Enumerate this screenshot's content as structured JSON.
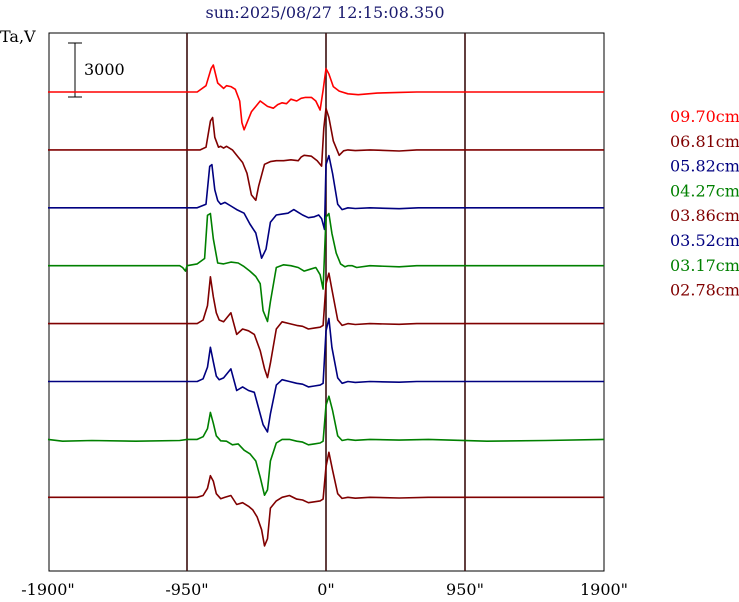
{
  "chart_data": {
    "type": "line",
    "title": "sun:2025/08/27 12:15:08.350",
    "ylabel": "Ta,V",
    "scale_bar_label": "3000",
    "scale_bar_value": 3000,
    "x_range": [
      -1900,
      1900
    ],
    "x_ticks": [
      {
        "value": -1900,
        "label": "-1900\""
      },
      {
        "value": -950,
        "label": "-950\""
      },
      {
        "value": 0,
        "label": "0\""
      },
      {
        "value": 950,
        "label": "950\""
      },
      {
        "value": 1900,
        "label": "1900\""
      }
    ],
    "vertical_lines": [
      -950,
      0,
      950
    ],
    "grid": false,
    "legend_position": "right",
    "colors": {
      "axis": "#000000",
      "vline": "#3a0f0f",
      "title": "#1a1a6e"
    },
    "series": [
      {
        "name": "09.70cm",
        "color": "#ff0000",
        "offset": 0,
        "x": [
          -1900,
          -950,
          -880,
          -820,
          -785,
          -770,
          -740,
          -700,
          -680,
          -650,
          -620,
          -590,
          -575,
          -560,
          -510,
          -450,
          -400,
          -360,
          -330,
          -300,
          -270,
          -240,
          -200,
          -170,
          -140,
          -100,
          -70,
          -40,
          -20,
          0,
          20,
          50,
          90,
          150,
          220,
          350,
          500,
          620,
          700,
          1900
        ],
        "y": [
          0,
          0,
          0,
          350,
          1300,
          1500,
          500,
          200,
          350,
          300,
          150,
          -500,
          -1700,
          -2100,
          -1100,
          -500,
          -800,
          -900,
          -700,
          -600,
          -650,
          -400,
          -500,
          -350,
          -300,
          -300,
          -500,
          -1000,
          100,
          1300,
          1000,
          300,
          50,
          -100,
          -150,
          -60,
          -20,
          0,
          0,
          0
        ]
      },
      {
        "name": "06.81cm",
        "color": "#800000",
        "offset": 1,
        "x": [
          -1900,
          -950,
          -860,
          -820,
          -790,
          -775,
          -760,
          -735,
          -720,
          -700,
          -680,
          -640,
          -600,
          -570,
          -540,
          -510,
          -480,
          -460,
          -420,
          -380,
          -340,
          -290,
          -240,
          -190,
          -170,
          -150,
          -100,
          -60,
          -30,
          -15,
          0,
          20,
          50,
          90,
          120,
          150,
          200,
          300,
          500,
          620,
          700,
          1900
        ],
        "y": [
          0,
          0,
          0,
          150,
          1600,
          1800,
          700,
          150,
          200,
          100,
          200,
          0,
          -400,
          -700,
          -1300,
          -2500,
          -2800,
          -2000,
          -800,
          -650,
          -600,
          -600,
          -550,
          -600,
          -400,
          -300,
          -350,
          -600,
          -900,
          1200,
          2300,
          1800,
          500,
          -300,
          -50,
          0,
          -40,
          0,
          -60,
          0,
          0,
          0
        ]
      },
      {
        "name": "05.82cm",
        "color": "#000080",
        "offset": 2,
        "x": [
          -1900,
          -950,
          -880,
          -820,
          -795,
          -780,
          -760,
          -740,
          -720,
          -690,
          -650,
          -610,
          -560,
          -520,
          -480,
          -440,
          -410,
          -380,
          -340,
          -300,
          -260,
          -220,
          -190,
          -160,
          -120,
          -80,
          -50,
          -30,
          -10,
          0,
          20,
          45,
          80,
          110,
          150,
          200,
          300,
          500,
          630,
          700,
          1900
        ],
        "y": [
          0,
          0,
          0,
          200,
          2300,
          2400,
          1000,
          400,
          200,
          300,
          100,
          -100,
          -300,
          -900,
          -1400,
          -2800,
          -2300,
          -800,
          -400,
          -350,
          -300,
          -100,
          -250,
          -400,
          -550,
          -500,
          -400,
          -600,
          -1200,
          2400,
          2900,
          1900,
          200,
          -100,
          0,
          -40,
          0,
          -50,
          0,
          0,
          0
        ]
      },
      {
        "name": "04.27cm",
        "color": "#008000",
        "offset": 3,
        "x": [
          -1900,
          -1000,
          -980,
          -960,
          -950,
          -880,
          -830,
          -810,
          -790,
          -770,
          -740,
          -700,
          -650,
          -600,
          -560,
          -520,
          -480,
          -450,
          -430,
          -400,
          -380,
          -340,
          -290,
          -240,
          -190,
          -150,
          -110,
          -70,
          -40,
          -20,
          0,
          20,
          40,
          70,
          100,
          130,
          150,
          180,
          210,
          300,
          500,
          620,
          700,
          1900
        ],
        "y": [
          0,
          0,
          -100,
          -300,
          0,
          100,
          400,
          2800,
          2900,
          1500,
          150,
          100,
          200,
          150,
          -50,
          -300,
          -600,
          -1000,
          -2500,
          -3100,
          -2000,
          -100,
          50,
          0,
          -100,
          -300,
          -200,
          -100,
          -500,
          -1300,
          2700,
          2900,
          1800,
          700,
          100,
          -60,
          0,
          0,
          -100,
          0,
          -60,
          0,
          0,
          0
        ]
      },
      {
        "name": "03.86cm",
        "color": "#800000",
        "offset": 4,
        "x": [
          -1900,
          -950,
          -880,
          -840,
          -810,
          -790,
          -770,
          -750,
          -730,
          -700,
          -650,
          -610,
          -570,
          -530,
          -490,
          -450,
          -420,
          -400,
          -380,
          -340,
          -300,
          -250,
          -200,
          -160,
          -120,
          -80,
          -40,
          -20,
          0,
          20,
          40,
          80,
          110,
          150,
          200,
          300,
          500,
          620,
          700,
          1900
        ],
        "y": [
          0,
          0,
          0,
          200,
          1000,
          2600,
          1500,
          600,
          200,
          100,
          600,
          -600,
          -300,
          -400,
          -600,
          -1500,
          -2500,
          -3000,
          -2200,
          -300,
          100,
          0,
          -100,
          -150,
          -300,
          -250,
          -200,
          -100,
          2200,
          2800,
          1900,
          200,
          -100,
          0,
          -50,
          0,
          -40,
          0,
          0,
          0
        ]
      },
      {
        "name": "03.52cm",
        "color": "#000080",
        "offset": 5,
        "x": [
          -1900,
          -950,
          -880,
          -840,
          -810,
          -790,
          -770,
          -750,
          -730,
          -700,
          -650,
          -610,
          -570,
          -530,
          -490,
          -460,
          -430,
          -400,
          -380,
          -340,
          -300,
          -250,
          -200,
          -160,
          -120,
          -80,
          -40,
          -20,
          0,
          20,
          40,
          80,
          110,
          150,
          200,
          300,
          500,
          620,
          700,
          1900
        ],
        "y": [
          0,
          0,
          0,
          150,
          800,
          1900,
          1100,
          300,
          100,
          200,
          700,
          -500,
          -300,
          -500,
          -600,
          -1500,
          -2400,
          -2800,
          -1800,
          -200,
          100,
          0,
          -100,
          -150,
          -300,
          -250,
          -200,
          -100,
          2800,
          3500,
          1900,
          200,
          -100,
          0,
          -50,
          0,
          -40,
          0,
          0,
          0
        ]
      },
      {
        "name": "03.17cm",
        "color": "#008000",
        "offset": 6,
        "x": [
          -1900,
          -1800,
          -1600,
          -1300,
          -1000,
          -950,
          -880,
          -840,
          -810,
          -790,
          -770,
          -750,
          -720,
          -680,
          -640,
          -600,
          -560,
          -520,
          -480,
          -450,
          -420,
          -400,
          -380,
          -340,
          -300,
          -250,
          -200,
          -160,
          -120,
          -80,
          -40,
          -20,
          0,
          20,
          45,
          80,
          110,
          150,
          200,
          300,
          500,
          700,
          1100,
          1500,
          1900
        ],
        "y": [
          0,
          -100,
          -60,
          -100,
          -60,
          0,
          0,
          150,
          600,
          1500,
          900,
          200,
          -80,
          -100,
          -300,
          -250,
          -600,
          -800,
          -1200,
          -2100,
          -3100,
          -2800,
          -1200,
          -200,
          0,
          0,
          -100,
          -150,
          -300,
          -250,
          -200,
          -100,
          1900,
          2400,
          1600,
          200,
          -60,
          0,
          -50,
          0,
          -40,
          0,
          -100,
          -60,
          0
        ]
      },
      {
        "name": "02.78cm",
        "color": "#800000",
        "offset": 7,
        "x": [
          -1900,
          -950,
          -880,
          -840,
          -810,
          -790,
          -770,
          -750,
          -720,
          -690,
          -650,
          -610,
          -570,
          -530,
          -500,
          -470,
          -440,
          -420,
          -400,
          -380,
          -340,
          -300,
          -250,
          -200,
          -160,
          -120,
          -80,
          -40,
          -20,
          0,
          20,
          45,
          80,
          110,
          150,
          200,
          300,
          500,
          700,
          1900
        ],
        "y": [
          0,
          0,
          0,
          100,
          500,
          1200,
          900,
          200,
          -80,
          0,
          100,
          -400,
          -300,
          -500,
          -700,
          -1100,
          -1800,
          -2700,
          -2300,
          -600,
          -200,
          0,
          100,
          -100,
          -150,
          -300,
          -250,
          -200,
          -100,
          1700,
          2500,
          1500,
          200,
          -60,
          0,
          -50,
          0,
          -40,
          0,
          0
        ]
      }
    ]
  }
}
